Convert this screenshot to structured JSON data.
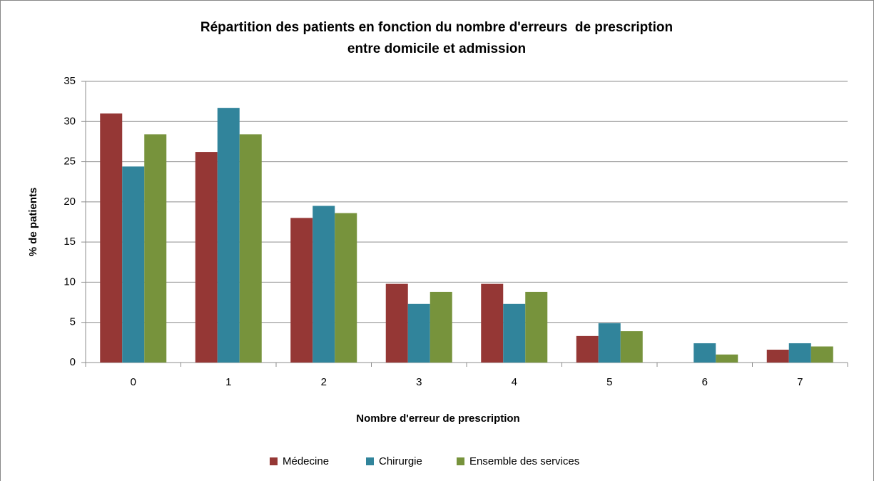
{
  "chart_data": {
    "type": "bar",
    "title": "Répartition des patients en fonction du nombre d'erreurs  de prescription entre domicile et admission",
    "x_label": "Nombre d'erreur de prescription",
    "y_label": "% de patients",
    "categories": [
      "0",
      "1",
      "2",
      "3",
      "4",
      "5",
      "6",
      "7"
    ],
    "series": [
      {
        "name": "Médecine",
        "color": "#953735",
        "values": [
          31,
          26.2,
          18,
          9.8,
          9.8,
          3.3,
          0,
          1.6
        ]
      },
      {
        "name": "Chirurgie",
        "color": "#31849b",
        "values": [
          24.4,
          31.7,
          19.5,
          7.3,
          7.3,
          4.9,
          2.4,
          2.4
        ]
      },
      {
        "name": "Ensemble des services",
        "color": "#77933c",
        "values": [
          28.4,
          28.4,
          18.6,
          8.8,
          8.8,
          3.9,
          1,
          2
        ]
      }
    ],
    "ylim": [
      0,
      35
    ],
    "yticks": [
      0,
      5,
      10,
      15,
      20,
      25,
      30,
      35
    ],
    "grid": true,
    "legend": "bottom"
  }
}
